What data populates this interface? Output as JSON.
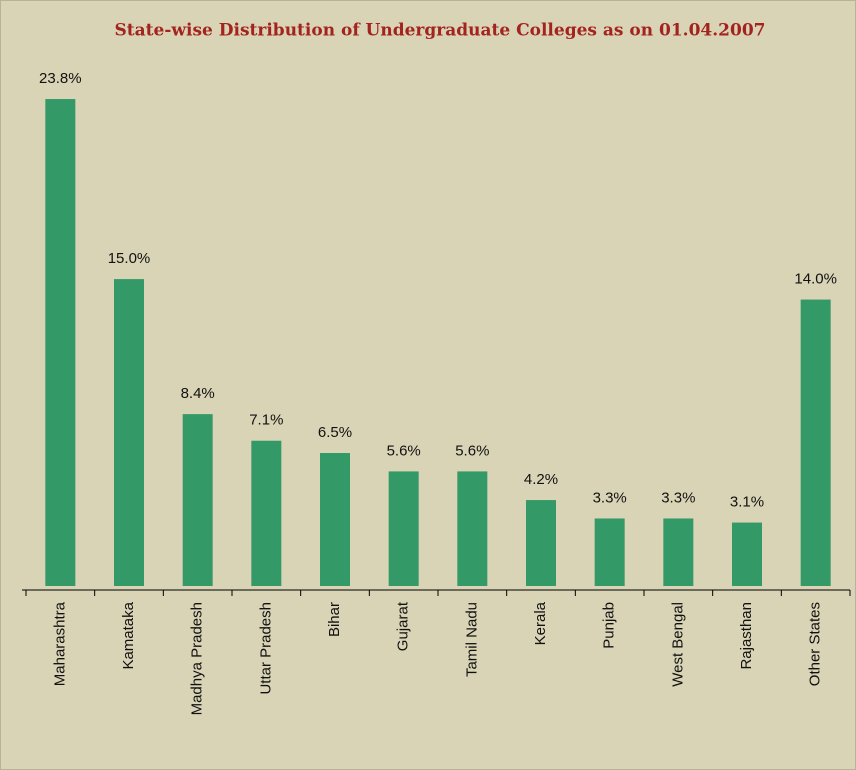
{
  "chart_data": {
    "type": "bar",
    "title": "State-wise Distribution of Undergraduate Colleges as on 01.04.2007",
    "categories": [
      "Maharashtra",
      "Kamataka",
      "Madhya Pradesh",
      "Uttar Pradesh",
      "Bihar",
      "Gujarat",
      "Tamil Nadu",
      "Kerala",
      "Punjab",
      "West Bengal",
      "Rajasthan",
      "Other States"
    ],
    "values": [
      23.8,
      15.0,
      8.4,
      7.1,
      6.5,
      5.6,
      5.6,
      4.2,
      3.3,
      3.3,
      3.1,
      14.0
    ],
    "value_labels": [
      "23.8%",
      "15.0%",
      "8.4%",
      "7.1%",
      "6.5%",
      "5.6%",
      "5.6%",
      "4.2%",
      "3.3%",
      "3.3%",
      "3.1%",
      "14.0%"
    ],
    "color": "#339966",
    "ylim": [
      0,
      25
    ]
  }
}
